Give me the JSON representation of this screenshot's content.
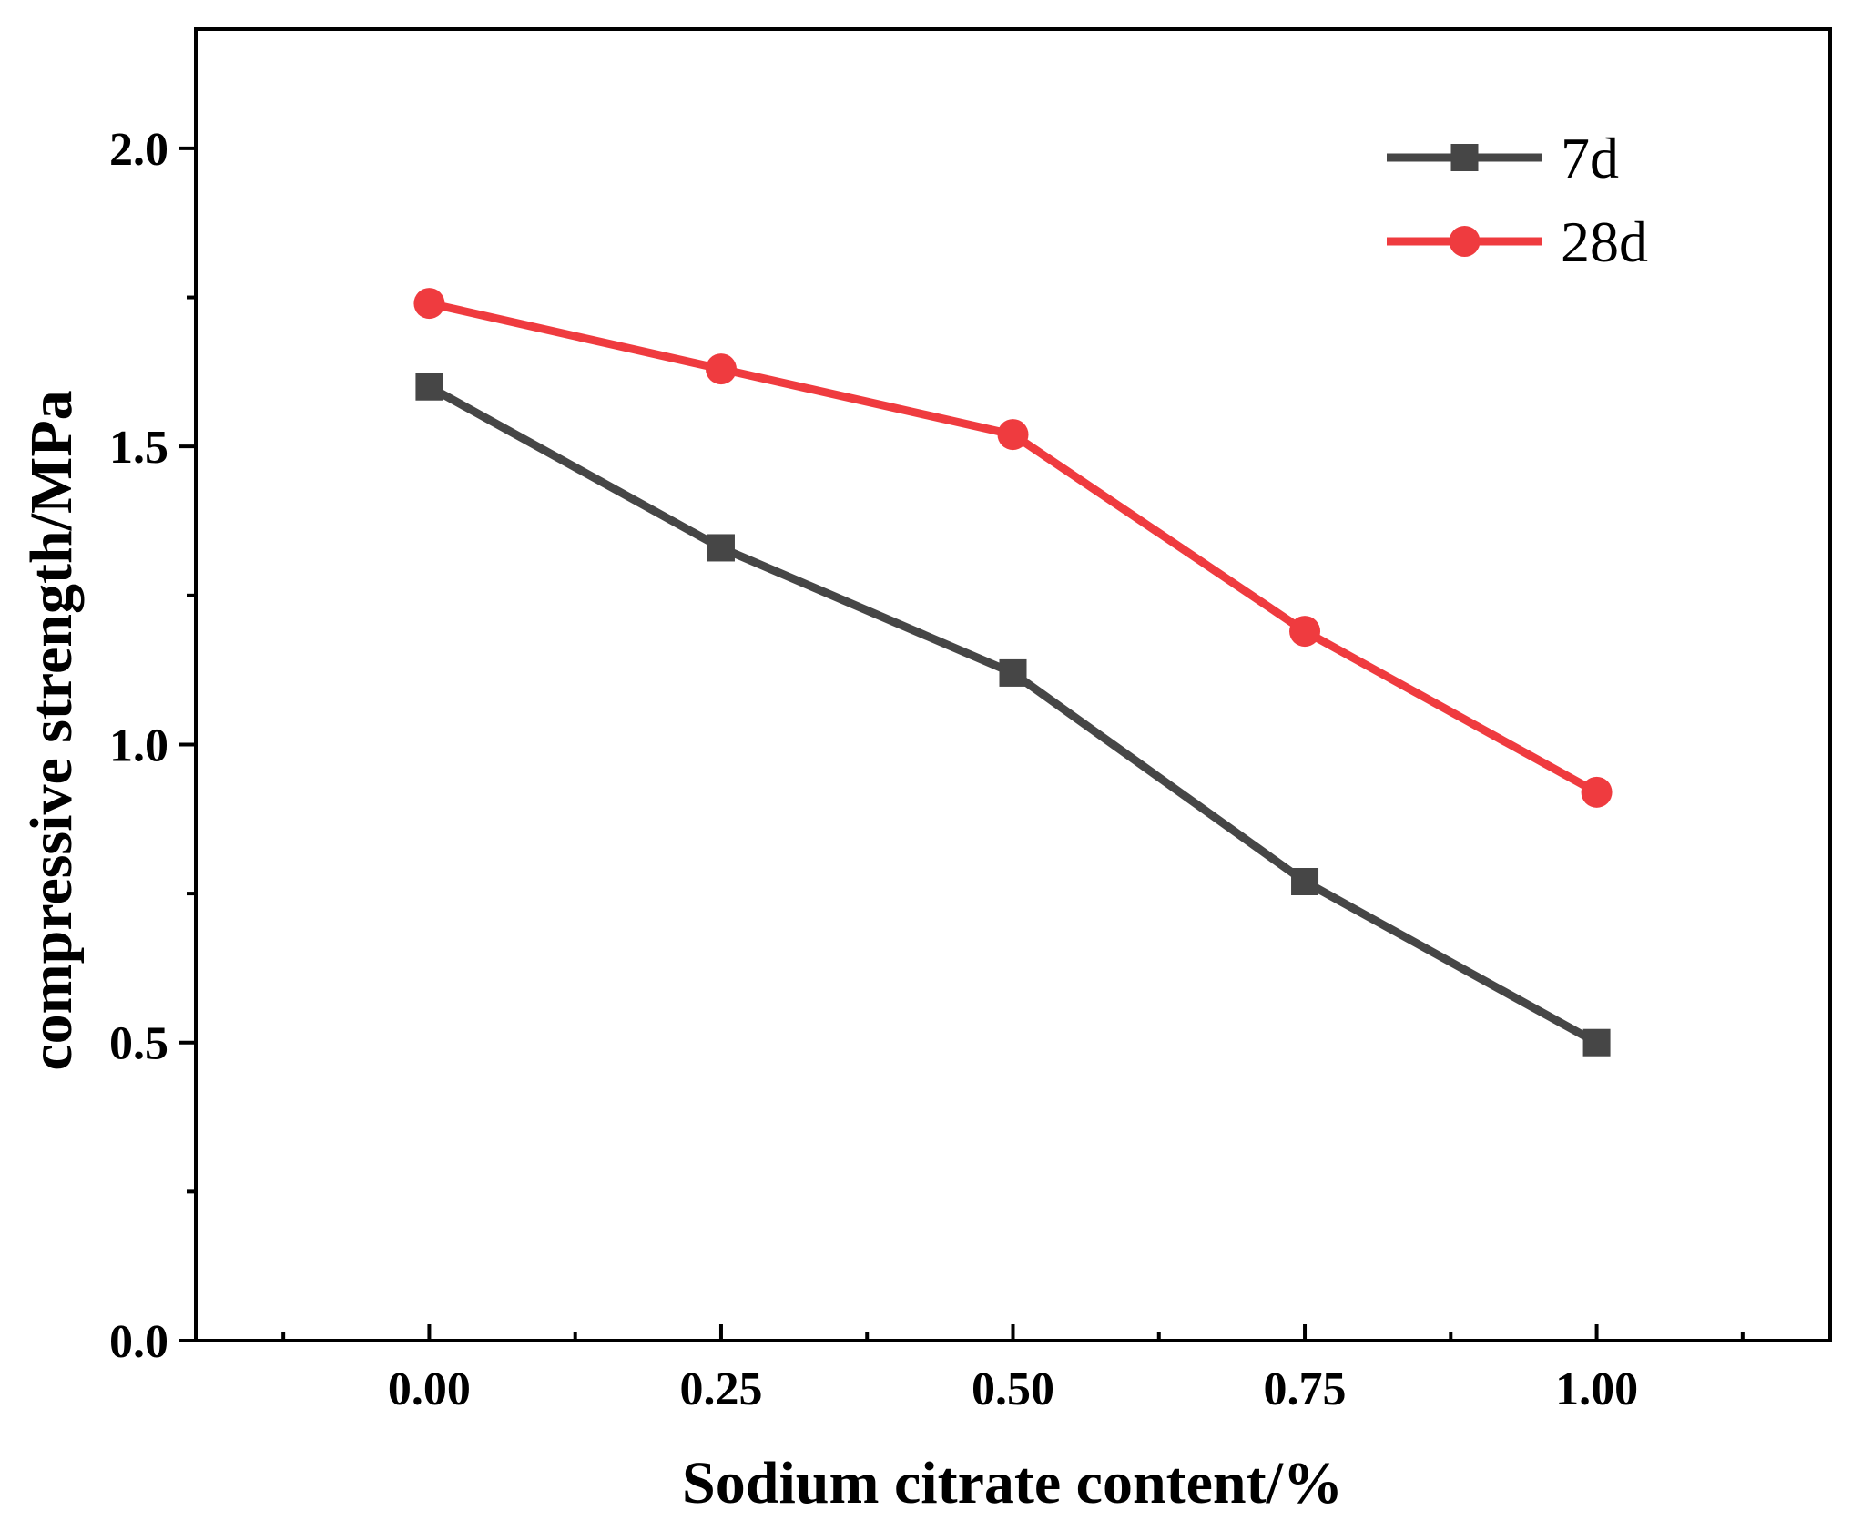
{
  "chart_data": {
    "type": "line",
    "title": "",
    "xlabel": "Sodium citrate content/%",
    "ylabel": "compressive strength/MPa",
    "x": [
      0.0,
      0.25,
      0.5,
      0.75,
      1.0
    ],
    "xlim": [
      -0.2,
      1.2
    ],
    "ylim": [
      0,
      2.2
    ],
    "x_ticks": [
      0.0,
      0.25,
      0.5,
      0.75,
      1.0
    ],
    "x_tick_labels": [
      "0.00",
      "0.25",
      "0.50",
      "0.75",
      "1.00"
    ],
    "x_minor_ticks": [
      -0.125,
      0.125,
      0.375,
      0.625,
      0.875,
      1.125
    ],
    "y_ticks": [
      0.0,
      0.5,
      1.0,
      1.5,
      2.0
    ],
    "y_tick_labels": [
      "0.0",
      "0.5",
      "1.0",
      "1.5",
      "2.0"
    ],
    "grid": false,
    "legend_position": "top-right",
    "series": [
      {
        "name": "7d",
        "marker": "square",
        "color": "#464646",
        "values": [
          1.6,
          1.33,
          1.12,
          0.77,
          0.5
        ]
      },
      {
        "name": "28d",
        "marker": "circle",
        "color": "#ef3b3f",
        "values": [
          1.74,
          1.63,
          1.52,
          1.19,
          0.92
        ]
      }
    ]
  }
}
